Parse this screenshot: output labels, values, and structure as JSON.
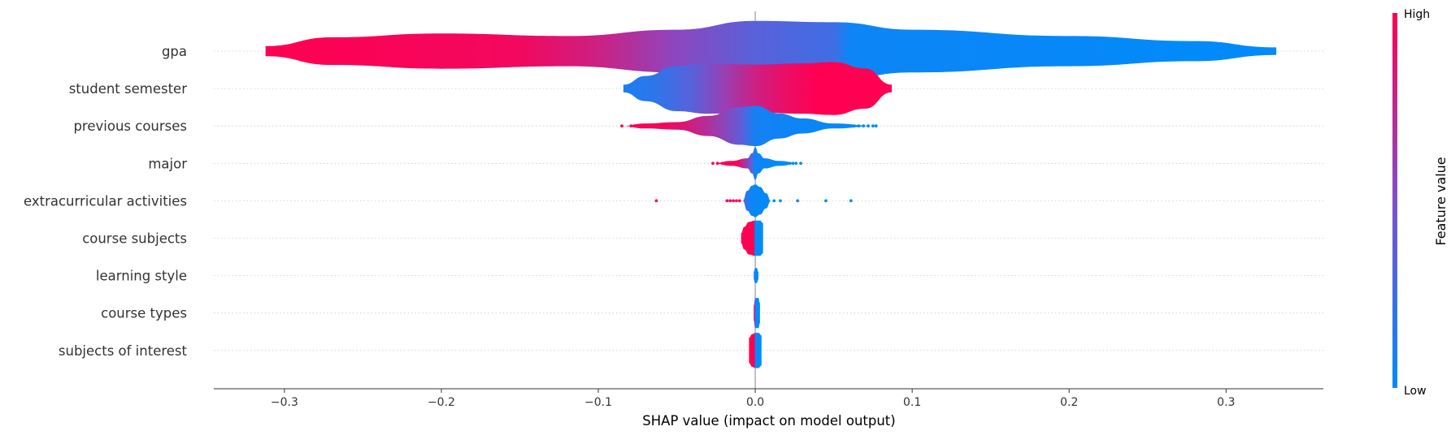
{
  "chart_data": {
    "type": "violin",
    "xlabel": "SHAP value (impact on model output)",
    "xlim": [
      -0.345,
      0.362
    ],
    "xticks": [
      -0.3,
      -0.2,
      -0.1,
      0.0,
      0.1,
      0.2,
      0.3
    ],
    "xtick_labels": [
      "−0.3",
      "−0.2",
      "−0.1",
      "0.0",
      "0.1",
      "0.2",
      "0.3"
    ],
    "grid": "dotted horizontal guides",
    "colorbar": {
      "label": "Feature value",
      "high_label": "High",
      "low_label": "Low",
      "high_color": "#ff0052",
      "mid_color": "#7f4fcc",
      "low_color": "#008bfb"
    },
    "features": [
      {
        "name": "gpa",
        "min": -0.312,
        "max": 0.332,
        "profile": [
          [
            -0.312,
            0.004
          ],
          [
            -0.27,
            0.011
          ],
          [
            -0.2,
            0.014
          ],
          [
            -0.12,
            0.012
          ],
          [
            -0.05,
            0.017
          ],
          [
            0.0,
            0.024
          ],
          [
            0.05,
            0.023
          ],
          [
            0.1,
            0.017
          ],
          [
            0.2,
            0.012
          ],
          [
            0.28,
            0.008
          ],
          [
            0.332,
            0.003
          ]
        ],
        "colors": [
          [
            -0.312,
            1.0
          ],
          [
            -0.15,
            0.95
          ],
          [
            -0.1,
            0.8
          ],
          [
            -0.05,
            0.55
          ],
          [
            0.0,
            0.35
          ],
          [
            0.05,
            0.25
          ],
          [
            0.06,
            0.05
          ],
          [
            0.332,
            0.0
          ]
        ]
      },
      {
        "name": "student semester",
        "min": -0.084,
        "max": 0.087,
        "profile": [
          [
            -0.084,
            0.003
          ],
          [
            -0.07,
            0.01
          ],
          [
            -0.05,
            0.018
          ],
          [
            -0.03,
            0.02
          ],
          [
            0.0,
            0.019
          ],
          [
            0.03,
            0.02
          ],
          [
            0.05,
            0.021
          ],
          [
            0.07,
            0.016
          ],
          [
            0.087,
            0.003
          ]
        ],
        "colors": [
          [
            -0.084,
            0.1
          ],
          [
            -0.06,
            0.2
          ],
          [
            -0.04,
            0.35
          ],
          [
            -0.02,
            0.6
          ],
          [
            0.0,
            0.8
          ],
          [
            0.02,
            0.92
          ],
          [
            0.04,
            1.0
          ],
          [
            0.087,
            1.0
          ]
        ]
      },
      {
        "name": "previous courses",
        "min": -0.085,
        "max": 0.077,
        "profile": [
          [
            -0.085,
            0.0
          ],
          [
            -0.07,
            0.002
          ],
          [
            -0.05,
            0.003
          ],
          [
            -0.03,
            0.008
          ],
          [
            -0.01,
            0.015
          ],
          [
            0.0,
            0.016
          ],
          [
            0.015,
            0.01
          ],
          [
            0.03,
            0.006
          ],
          [
            0.05,
            0.002
          ],
          [
            0.077,
            0.0
          ]
        ],
        "colors": [
          [
            -0.085,
            1.0
          ],
          [
            -0.05,
            0.9
          ],
          [
            -0.03,
            0.7
          ],
          [
            -0.01,
            0.4
          ],
          [
            0.0,
            0.08
          ],
          [
            0.077,
            0.0
          ]
        ],
        "dots": [
          -0.085,
          -0.079,
          -0.077,
          -0.075,
          -0.072,
          -0.07,
          -0.068,
          -0.066,
          -0.064,
          -0.062,
          -0.06,
          -0.058,
          -0.056,
          0.042,
          0.045,
          0.048,
          0.051,
          0.054,
          0.057,
          0.06,
          0.063,
          0.066,
          0.069,
          0.072,
          0.075,
          0.077
        ]
      },
      {
        "name": "major",
        "min": -0.027,
        "max": 0.029,
        "profile": [
          [
            -0.027,
            0.0
          ],
          [
            -0.015,
            0.002
          ],
          [
            -0.005,
            0.004
          ],
          [
            -0.002,
            0.008
          ],
          [
            0.0,
            0.013
          ],
          [
            0.002,
            0.008
          ],
          [
            0.006,
            0.004
          ],
          [
            0.015,
            0.002
          ],
          [
            0.029,
            0.0
          ]
        ],
        "colors": [
          [
            -0.027,
            1.0
          ],
          [
            -0.01,
            0.9
          ],
          [
            -0.003,
            0.4
          ],
          [
            0.0,
            0.05
          ],
          [
            0.029,
            0.0
          ]
        ],
        "dots": [
          -0.027,
          -0.024,
          -0.021,
          -0.019,
          -0.017,
          -0.015,
          -0.013,
          -0.011,
          0.01,
          0.012,
          0.014,
          0.016,
          0.018,
          0.02,
          0.022,
          0.024,
          0.026,
          0.029
        ]
      },
      {
        "name": "extracurricular activities",
        "min": -0.063,
        "max": 0.061,
        "profile": [
          [
            -0.008,
            0.0
          ],
          [
            -0.005,
            0.008
          ],
          [
            -0.002,
            0.012
          ],
          [
            0.0,
            0.013
          ],
          [
            0.003,
            0.011
          ],
          [
            0.007,
            0.006
          ],
          [
            0.01,
            0.0
          ]
        ],
        "colors": [
          [
            -0.008,
            0.3
          ],
          [
            -0.003,
            0.05
          ],
          [
            0.01,
            0.0
          ]
        ],
        "dots": [
          -0.063,
          -0.018,
          -0.016,
          -0.014,
          -0.012,
          -0.01,
          0.012,
          0.016,
          0.027,
          0.045,
          0.061
        ]
      },
      {
        "name": "course subjects",
        "min": -0.009,
        "max": 0.005,
        "profile": [
          [
            -0.009,
            0.004
          ],
          [
            -0.007,
            0.009
          ],
          [
            -0.004,
            0.013
          ],
          [
            0.0,
            0.014
          ],
          [
            0.003,
            0.014
          ],
          [
            0.005,
            0.012
          ]
        ],
        "colors": [
          [
            -0.009,
            1.0
          ],
          [
            -0.001,
            1.0
          ],
          [
            0.0,
            0.0
          ],
          [
            0.005,
            0.0
          ]
        ]
      },
      {
        "name": "learning style",
        "min": -0.001,
        "max": 0.002,
        "profile": [
          [
            -0.001,
            0.003
          ],
          [
            0.0,
            0.006
          ],
          [
            0.001,
            0.006
          ],
          [
            0.002,
            0.003
          ]
        ],
        "colors": [
          [
            -0.001,
            0.2
          ],
          [
            0.0,
            0.0
          ],
          [
            0.002,
            0.0
          ]
        ]
      },
      {
        "name": "course types",
        "min": -0.001,
        "max": 0.003,
        "profile": [
          [
            -0.001,
            0.006
          ],
          [
            0.0,
            0.012
          ],
          [
            0.002,
            0.012
          ],
          [
            0.003,
            0.008
          ]
        ],
        "colors": [
          [
            -0.001,
            1.0
          ],
          [
            -0.0002,
            0.7
          ],
          [
            0.0,
            0.0
          ],
          [
            0.003,
            0.0
          ]
        ]
      },
      {
        "name": "subjects of interest",
        "min": -0.004,
        "max": 0.004,
        "profile": [
          [
            -0.004,
            0.01
          ],
          [
            -0.002,
            0.013
          ],
          [
            0.0,
            0.014
          ],
          [
            0.002,
            0.014
          ],
          [
            0.004,
            0.012
          ]
        ],
        "colors": [
          [
            -0.004,
            1.0
          ],
          [
            -0.0005,
            1.0
          ],
          [
            0.0,
            0.0
          ],
          [
            0.004,
            0.0
          ]
        ]
      }
    ]
  }
}
